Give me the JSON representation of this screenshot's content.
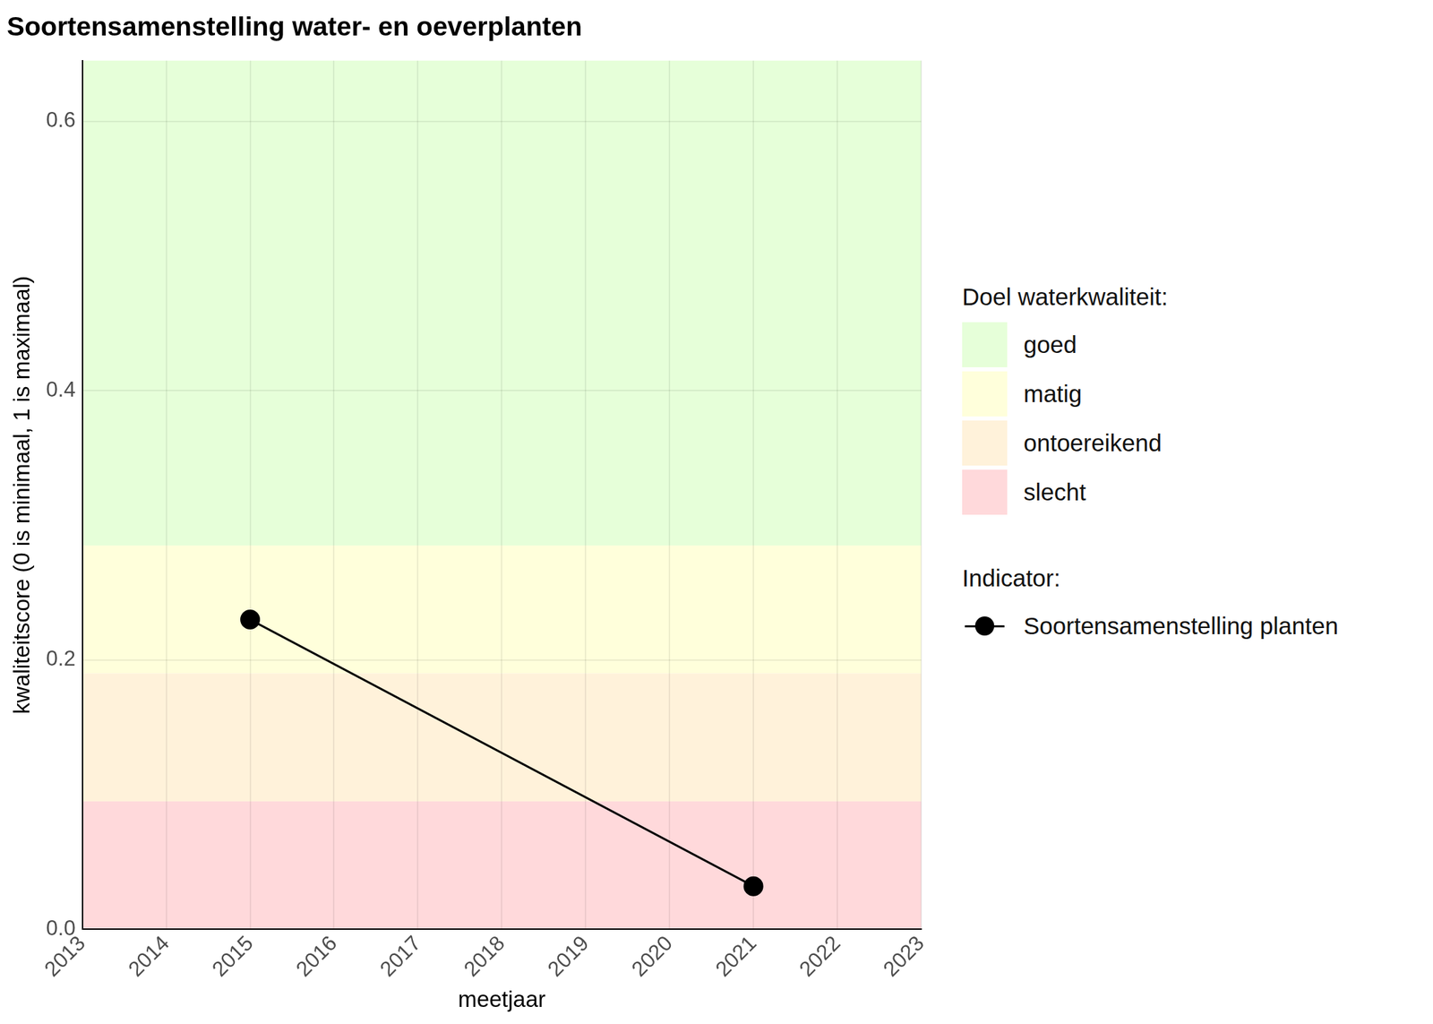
{
  "chart_data": {
    "type": "line",
    "title": "Soortensamenstelling water- en oeverplanten",
    "x_label": "meetjaar",
    "y_label": "kwaliteitscore (0 is minimaal, 1 is maximaal)",
    "x": [
      2015,
      2021
    ],
    "series": [
      {
        "name": "Soortensamenstelling planten",
        "color": "#000000",
        "marker": "circle",
        "line_style": "solid",
        "values": [
          0.23,
          0.032
        ]
      }
    ],
    "xlim": [
      2013,
      2023
    ],
    "xticks": [
      2013,
      2014,
      2015,
      2016,
      2017,
      2018,
      2019,
      2020,
      2021,
      2022,
      2023
    ],
    "ylim": [
      0,
      0.645
    ],
    "yticks": [
      {
        "value": 0,
        "label": "0.0"
      },
      0.2,
      0.4,
      0.6
    ],
    "grid": true,
    "legend": "right",
    "bands_title": "Doel waterkwaliteit:",
    "series_title": "Indicator:",
    "bands": [
      {
        "name": "goed",
        "color": "#e6ffd9",
        "from": 0.285,
        "to": 0.645
      },
      {
        "name": "matig",
        "color": "#ffffdb",
        "from": 0.19,
        "to": 0.285
      },
      {
        "name": "ontoereikend",
        "color": "#fff2da",
        "from": 0.095,
        "to": 0.19
      },
      {
        "name": "slecht",
        "color": "#ffd9db",
        "from": 0,
        "to": 0.095
      }
    ]
  }
}
